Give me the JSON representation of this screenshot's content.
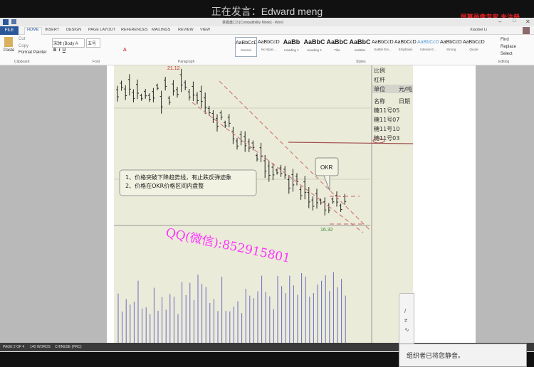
{
  "meeting": {
    "speaker": "正在发言：Edward meng",
    "watermark": "屏幕录像专家 未注册",
    "mute_notice": "组织者已将您静音。"
  },
  "window": {
    "title": "掌握盘口3 [Compatibility Mode] - Word",
    "user": "Xiaobei Li"
  },
  "tabs": [
    "FILE",
    "HOME",
    "INSERT",
    "DESIGN",
    "PAGE LAYOUT",
    "REFERENCES",
    "MAILINGS",
    "REVIEW",
    "VIEW"
  ],
  "active_tab": "HOME",
  "clipboard": {
    "paste": "Paste",
    "cut": "Cut",
    "copy": "Copy",
    "format_painter": "Format Painter",
    "group": "Clipboard"
  },
  "font": {
    "name": "宋体 (Body A",
    "size": "五号",
    "group": "Font"
  },
  "paragraph": {
    "group": "Paragraph"
  },
  "styles": {
    "group": "Styles",
    "items": [
      {
        "preview": "AaBbCcDd",
        "name": "Normal"
      },
      {
        "preview": "AaBbCcDd",
        "name": "No Spac..."
      },
      {
        "preview": "AaBb",
        "name": "Heading 1"
      },
      {
        "preview": "AaBbC",
        "name": "Heading 2"
      },
      {
        "preview": "AaBbC",
        "name": "Title"
      },
      {
        "preview": "AaBbC",
        "name": "Subtitle"
      },
      {
        "preview": "AaBbCcDd",
        "name": "Subtle Em..."
      },
      {
        "preview": "AaBbCcDd",
        "name": "Emphasis"
      },
      {
        "preview": "AaBbCcDd",
        "name": "Intense E..."
      },
      {
        "preview": "AaBbCcDd",
        "name": "Strong"
      },
      {
        "preview": "AaBbCcDd",
        "name": "Quote"
      }
    ]
  },
  "editing": {
    "find": "Find",
    "replace": "Replace",
    "select": "Select",
    "group": "Editing"
  },
  "status": {
    "page": "PAGE 2 OF 4",
    "words": "140 WORDS",
    "language": "CHINESE (PRC)"
  },
  "chart_image": {
    "high_label": "21.12",
    "low_label": "16.32",
    "callout": "OKR",
    "notes": [
      "1、价格突破下降趋势线，有止跌反弹迹象",
      "2、价格在OKR价格区间内盘整"
    ],
    "overlay": "QQ(微信):852915801",
    "side_table": [
      "比例",
      "杠杆",
      "单位",
      "元/吨",
      "名称",
      "日期",
      "糖11号05",
      "糖11号07",
      "糖11号10",
      "糖11号03"
    ],
    "colors": {
      "candle": "#222222",
      "trend": "#d08080",
      "volume": "#6a6ac8",
      "overlay": "#ff33ff"
    }
  }
}
